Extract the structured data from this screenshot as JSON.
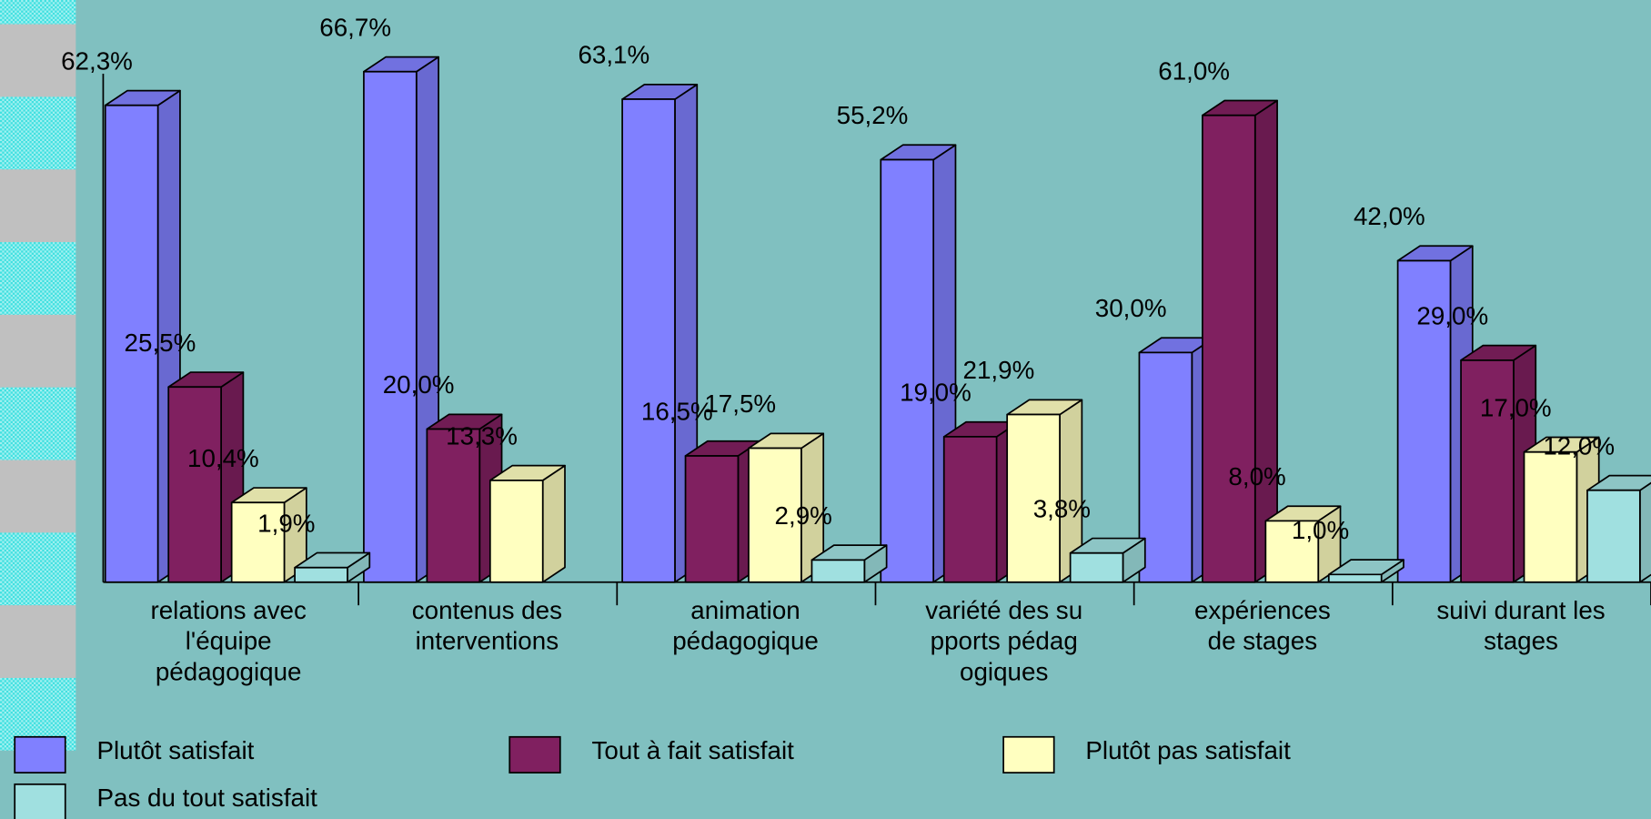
{
  "chart_data": {
    "type": "bar3d",
    "categories": [
      "relations avec\nl'équipe\npédagogique",
      "contenus des\ninterventions",
      "animation\npédagogique",
      "variété des su\npports pédag\nogiques",
      "expériences\nde stages",
      "suivi durant les\nstages"
    ],
    "series": [
      {
        "name": "Plutôt satisfait",
        "color": "#8080ff",
        "values": [
          62.3,
          66.7,
          63.1,
          55.2,
          30.0,
          42.0
        ],
        "value_labels": [
          "62,3%",
          "66,7%",
          "63,1%",
          "55,2%",
          "30,0%",
          "42,0%"
        ]
      },
      {
        "name": "Tout à fait satisfait",
        "color": "#802060",
        "values": [
          25.5,
          20.0,
          16.5,
          19.0,
          61.0,
          29.0
        ],
        "value_labels": [
          "25,5%",
          "20,0%",
          "16,5%",
          "19,0%",
          "61,0%",
          "29,0%"
        ]
      },
      {
        "name": "Plutôt pas satisfait",
        "color": "#ffffc0",
        "values": [
          10.4,
          13.3,
          17.5,
          21.9,
          8.0,
          17.0
        ],
        "value_labels": [
          "10,4%",
          "13,3%",
          "17,5%",
          "21,9%",
          "8,0%",
          "17,0%"
        ]
      },
      {
        "name": "Pas du tout satisfait",
        "color": "#a0e0e0",
        "values": [
          1.9,
          null,
          2.9,
          3.8,
          1.0,
          12.0
        ],
        "value_labels": [
          "1,9%",
          null,
          "2,9%",
          "3,8%",
          "1,0%",
          "12,0%"
        ]
      }
    ]
  }
}
